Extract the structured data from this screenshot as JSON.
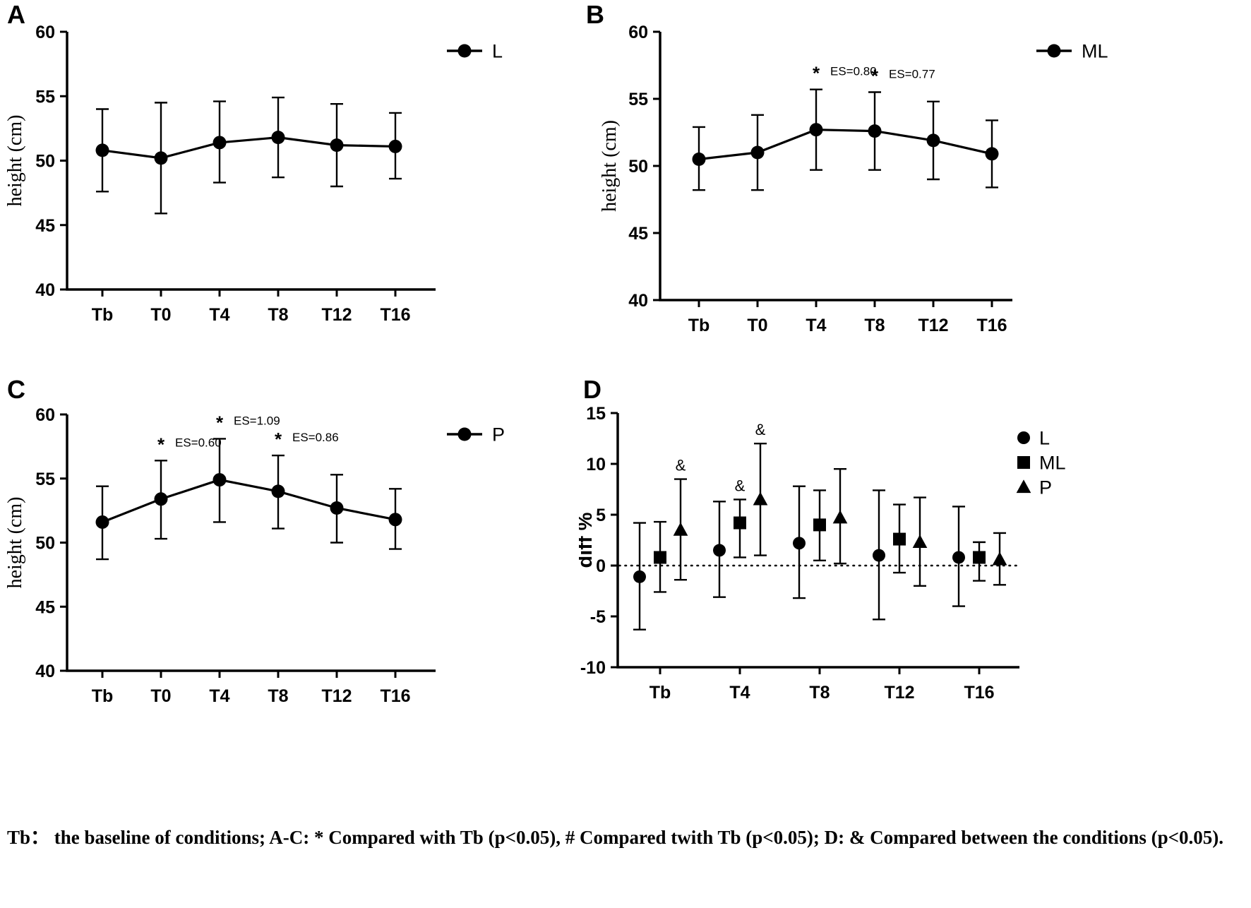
{
  "caption": "Tb： the baseline of conditions; A-C: * Compared with Tb (p<0.05), # Compared twith Tb (p<0.05); D: & Compared between the conditions (p<0.05).",
  "chart_data": [
    {
      "id": "A",
      "panel_label": "A",
      "type": "line",
      "ylabel": "height (cm)",
      "ylim": [
        40,
        60
      ],
      "yticks": [
        40,
        45,
        50,
        55,
        60
      ],
      "categories": [
        "Tb",
        "T0",
        "T4",
        "T8",
        "T12",
        "T16"
      ],
      "legend": [
        {
          "name": "L",
          "marker": "circle"
        }
      ],
      "series": [
        {
          "name": "L",
          "marker": "circle",
          "connect": true,
          "values": [
            50.8,
            50.2,
            51.4,
            51.8,
            51.2,
            51.1
          ],
          "err_upper": [
            54.0,
            54.5,
            54.6,
            54.9,
            54.4,
            53.7
          ],
          "err_lower": [
            47.6,
            45.9,
            48.3,
            48.7,
            48.0,
            48.6
          ]
        }
      ],
      "annotations": []
    },
    {
      "id": "B",
      "panel_label": "B",
      "type": "line",
      "ylabel": "height (cm)",
      "ylim": [
        40,
        60
      ],
      "yticks": [
        40,
        45,
        50,
        55,
        60
      ],
      "categories": [
        "Tb",
        "T0",
        "T4",
        "T8",
        "T12",
        "T16"
      ],
      "legend": [
        {
          "name": "ML",
          "marker": "circle"
        }
      ],
      "series": [
        {
          "name": "ML",
          "marker": "circle",
          "connect": true,
          "values": [
            50.5,
            51.0,
            52.7,
            52.6,
            51.9,
            50.9
          ],
          "err_upper": [
            52.9,
            53.8,
            55.7,
            55.5,
            54.8,
            53.4
          ],
          "err_lower": [
            48.2,
            48.2,
            49.7,
            49.7,
            49.0,
            48.4
          ]
        }
      ],
      "annotations": [
        {
          "cat": "T4",
          "symbol": "*",
          "text": "ES=0.80"
        },
        {
          "cat": "T8",
          "symbol": "*",
          "text": "ES=0.77"
        }
      ]
    },
    {
      "id": "C",
      "panel_label": "C",
      "type": "line",
      "ylabel": "height (cm)",
      "ylim": [
        40,
        60
      ],
      "yticks": [
        40,
        45,
        50,
        55,
        60
      ],
      "categories": [
        "Tb",
        "T0",
        "T4",
        "T8",
        "T12",
        "T16"
      ],
      "legend": [
        {
          "name": "P",
          "marker": "circle"
        }
      ],
      "series": [
        {
          "name": "P",
          "marker": "circle",
          "connect": true,
          "values": [
            51.6,
            53.4,
            54.9,
            54.0,
            52.7,
            51.8
          ],
          "err_upper": [
            54.4,
            56.4,
            58.1,
            56.8,
            55.3,
            54.2
          ],
          "err_lower": [
            48.7,
            50.3,
            51.6,
            51.1,
            50.0,
            49.5
          ]
        }
      ],
      "annotations": [
        {
          "cat": "T0",
          "symbol": "*",
          "text": "ES=0.60"
        },
        {
          "cat": "T4",
          "symbol": "*",
          "text": "ES=1.09"
        },
        {
          "cat": "T8",
          "symbol": "*",
          "text": "ES=0.86"
        }
      ]
    },
    {
      "id": "D",
      "panel_label": "D",
      "type": "scatter",
      "ylabel": "diff %",
      "ylim": [
        -10,
        15
      ],
      "yticks": [
        -10,
        -5,
        0,
        5,
        10,
        15
      ],
      "zero_line": true,
      "categories": [
        "Tb",
        "T4",
        "T8",
        "T12",
        "T16"
      ],
      "legend": [
        {
          "name": "L",
          "marker": "circle"
        },
        {
          "name": "ML",
          "marker": "square"
        },
        {
          "name": "P",
          "marker": "triangle"
        }
      ],
      "series": [
        {
          "name": "L",
          "marker": "circle",
          "connect": false,
          "values": [
            -1.1,
            1.5,
            2.2,
            1.0,
            0.8
          ],
          "err_upper": [
            4.2,
            6.3,
            7.8,
            7.4,
            5.8
          ],
          "err_lower": [
            -6.3,
            -3.1,
            -3.2,
            -5.3,
            -4.0
          ]
        },
        {
          "name": "ML",
          "marker": "square",
          "connect": false,
          "values": [
            0.8,
            4.2,
            4.0,
            2.6,
            0.8
          ],
          "err_upper": [
            4.3,
            6.5,
            7.4,
            6.0,
            2.3
          ],
          "err_lower": [
            -2.6,
            0.8,
            0.5,
            -0.7,
            -1.5
          ]
        },
        {
          "name": "P",
          "marker": "triangle",
          "connect": false,
          "values": [
            3.5,
            6.5,
            4.7,
            2.3,
            0.6
          ],
          "err_upper": [
            8.5,
            12.0,
            9.5,
            6.7,
            3.2
          ],
          "err_lower": [
            -1.4,
            1.0,
            0.2,
            -2.0,
            -1.9
          ]
        }
      ],
      "annotations": [
        {
          "cat": "Tb",
          "series": "P",
          "symbol": "&"
        },
        {
          "cat": "T4",
          "series": "ML",
          "symbol": "&"
        },
        {
          "cat": "T4",
          "series": "P",
          "symbol": "&"
        }
      ]
    }
  ]
}
